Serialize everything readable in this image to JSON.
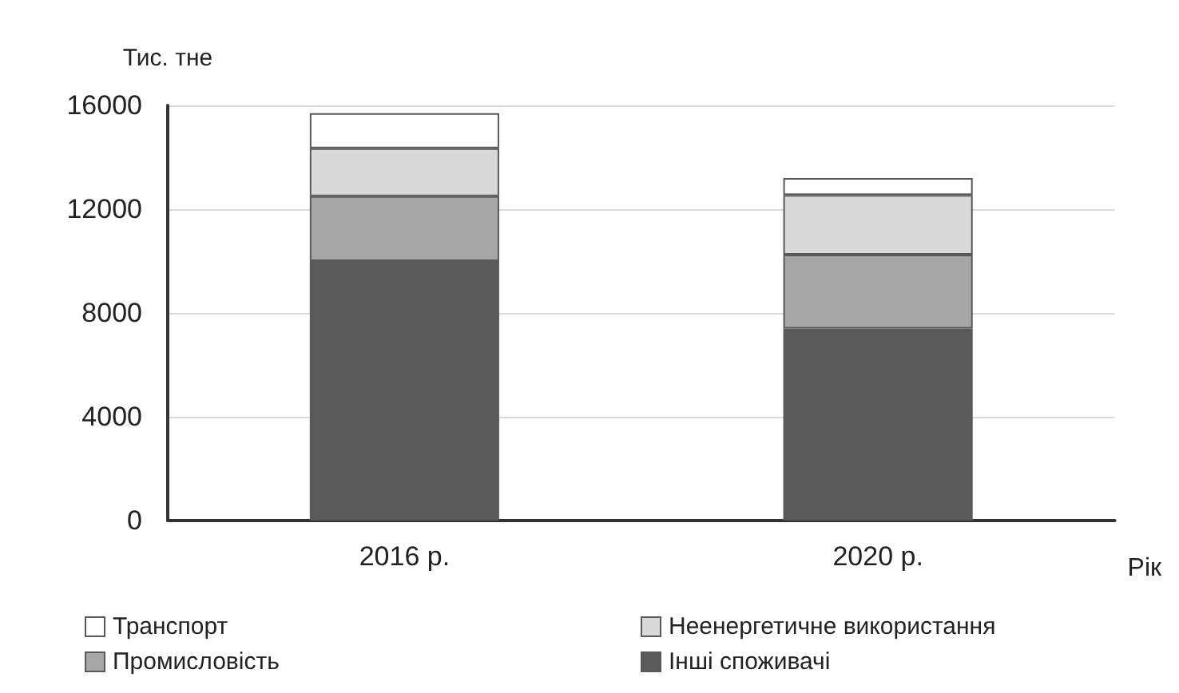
{
  "chart_data": {
    "type": "bar",
    "stacked": true,
    "ylabel": "Тис. тне",
    "xlabel": "Рік",
    "categories": [
      "2016 р.",
      "2020 р."
    ],
    "series": [
      {
        "name": "Інші споживачі",
        "color": "#595959",
        "values": [
          10000,
          7400
        ]
      },
      {
        "name": "Промисловість",
        "color": "#a6a6a6",
        "values": [
          2500,
          2850
        ]
      },
      {
        "name": "Неенергетичне використання",
        "color": "#d9d9d9",
        "values": [
          1850,
          2300
        ]
      },
      {
        "name": "Транспорт",
        "color": "#ffffff",
        "values": [
          1350,
          650
        ]
      }
    ],
    "ylim": [
      0,
      16000
    ],
    "yticks": [
      0,
      4000,
      8000,
      12000,
      16000
    ],
    "grid": "y",
    "legend": "bottom"
  }
}
